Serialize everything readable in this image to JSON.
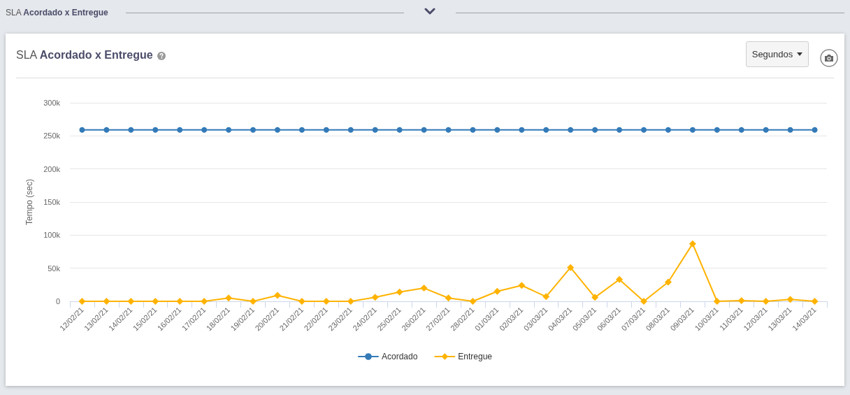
{
  "chart_data": {
    "type": "line",
    "title": "SLA Acordado x Entregue",
    "ylabel": "Tempo (sec)",
    "annotations": [
      "Segundos"
    ],
    "categories": [
      "12/02/21",
      "13/02/21",
      "14/02/21",
      "15/02/21",
      "16/02/21",
      "17/02/21",
      "18/02/21",
      "19/02/21",
      "20/02/21",
      "21/02/21",
      "22/02/21",
      "23/02/21",
      "24/02/21",
      "25/02/21",
      "26/02/21",
      "27/02/21",
      "28/02/21",
      "01/03/21",
      "02/03/21",
      "03/03/21",
      "04/03/21",
      "05/03/21",
      "06/03/21",
      "07/03/21",
      "08/03/21",
      "09/03/21",
      "10/03/21",
      "11/03/21",
      "12/03/21",
      "13/03/21",
      "14/03/21"
    ],
    "series": [
      {
        "name": "Acordado",
        "color": "#337ab7",
        "marker": "circle",
        "values": [
          259000,
          259000,
          259000,
          259000,
          259000,
          259000,
          259000,
          259000,
          259000,
          259000,
          259000,
          259000,
          259000,
          259000,
          259000,
          259000,
          259000,
          259000,
          259000,
          259000,
          259000,
          259000,
          259000,
          259000,
          259000,
          259000,
          259000,
          259000,
          259000,
          259000,
          259000
        ]
      },
      {
        "name": "Entregue",
        "color": "#ffb300",
        "marker": "diamond",
        "values": [
          0,
          0,
          0,
          0,
          0,
          0,
          5000,
          0,
          9000,
          0,
          0,
          0,
          6000,
          14000,
          20000,
          5000,
          0,
          15000,
          24000,
          7000,
          51000,
          6000,
          33000,
          0,
          29000,
          87000,
          0,
          1000,
          0,
          3000,
          0
        ]
      }
    ],
    "ylim": [
      0,
      300000
    ],
    "yticks": [
      0,
      {
        "value": 50000,
        "label": "50k"
      },
      {
        "value": 100000,
        "label": "100k"
      },
      {
        "value": 150000,
        "label": "150k"
      },
      {
        "value": 200000,
        "label": "200k"
      },
      {
        "value": 250000,
        "label": "250k"
      },
      {
        "value": 300000,
        "label": "300k"
      }
    ],
    "grid": "y",
    "legend": "bottom"
  }
}
